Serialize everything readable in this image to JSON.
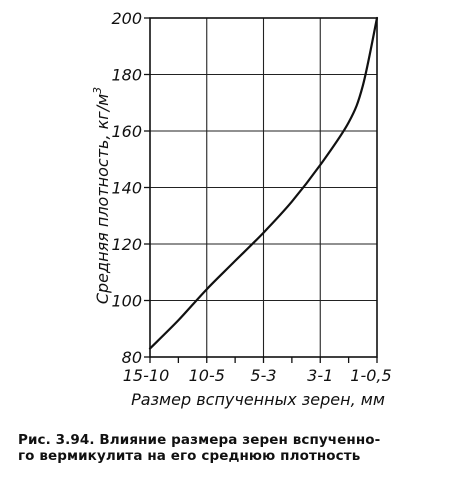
{
  "chart_data": {
    "type": "line",
    "title": "",
    "xlabel": "Размер вспученных зерен, мм",
    "ylabel": "Средняя плотность, кг/м³",
    "ylabel_main": "Средняя плотность, кг/м",
    "ylabel_sup": "3",
    "categories": [
      "15-10",
      "10-5",
      "5-3",
      "3-1",
      "1-0,5"
    ],
    "x_minor_ticks": 9,
    "y_ticks": [
      80,
      100,
      120,
      140,
      160,
      180,
      200
    ],
    "ylim": [
      80,
      200
    ],
    "grid": true,
    "series": [
      {
        "name": "",
        "x": [
          0,
          0.5,
          1,
          1.5,
          2,
          2.5,
          3,
          3.5,
          3.75,
          4
        ],
        "values": [
          83,
          93,
          104,
          114,
          124,
          135,
          148,
          163,
          176,
          200
        ]
      }
    ]
  },
  "caption": {
    "line1": "Рис. 3.94. Влияние размера зерен вспученно-",
    "line2": "го вермикулита на его среднюю плотность"
  }
}
